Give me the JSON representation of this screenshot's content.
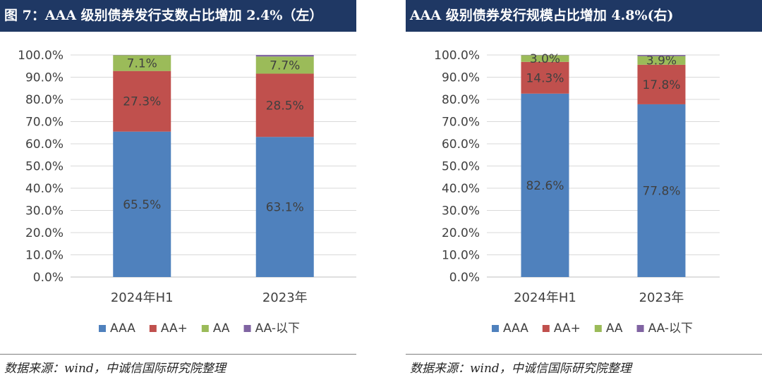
{
  "panels": [
    {
      "title": "图 7：AAA 级别债券发行支数占比增加 2.4%（左）",
      "source": "数据来源：wind，中诚信国际研究院整理"
    },
    {
      "title": "AAA 级别债券发行规模占比增加 4.8%(右)",
      "source": "数据来源：wind，中诚信国际研究院整理"
    }
  ],
  "chart_data": [
    {
      "type": "bar",
      "stacked": true,
      "categories": [
        "2024年H1",
        "2023年"
      ],
      "series": [
        {
          "name": "AAA",
          "color": "#4f81bd",
          "values": [
            65.5,
            63.1
          ],
          "labels": [
            "65.5%",
            "63.1%"
          ]
        },
        {
          "name": "AA+",
          "color": "#c0504d",
          "values": [
            27.3,
            28.5
          ],
          "labels": [
            "27.3%",
            "28.5%"
          ]
        },
        {
          "name": "AA",
          "color": "#9bbb59",
          "values": [
            7.1,
            7.7
          ],
          "labels": [
            "7.1%",
            "7.7%"
          ]
        },
        {
          "name": "AA-以下",
          "color": "#8064a2",
          "values": [
            0.1,
            0.7
          ],
          "labels": [
            "",
            ""
          ]
        }
      ],
      "ylim": [
        0,
        100
      ],
      "yticks": [
        "0.0%",
        "10.0%",
        "20.0%",
        "30.0%",
        "40.0%",
        "50.0%",
        "60.0%",
        "70.0%",
        "80.0%",
        "90.0%",
        "100.0%"
      ],
      "grid": true,
      "legend": "bottom"
    },
    {
      "type": "bar",
      "stacked": true,
      "categories": [
        "2024年H1",
        "2023年"
      ],
      "series": [
        {
          "name": "AAA",
          "color": "#4f81bd",
          "values": [
            82.6,
            77.8
          ],
          "labels": [
            "82.6%",
            "77.8%"
          ]
        },
        {
          "name": "AA+",
          "color": "#c0504d",
          "values": [
            14.3,
            17.8
          ],
          "labels": [
            "14.3%",
            "17.8%"
          ]
        },
        {
          "name": "AA",
          "color": "#9bbb59",
          "values": [
            3.0,
            3.9
          ],
          "labels": [
            "3.0%",
            "3.9%"
          ]
        },
        {
          "name": "AA-以下",
          "color": "#8064a2",
          "values": [
            0.1,
            0.5
          ],
          "labels": [
            "",
            ""
          ]
        }
      ],
      "ylim": [
        0,
        100
      ],
      "yticks": [
        "0.0%",
        "10.0%",
        "20.0%",
        "30.0%",
        "40.0%",
        "50.0%",
        "60.0%",
        "70.0%",
        "80.0%",
        "90.0%",
        "100.0%"
      ],
      "grid": true,
      "legend": "bottom"
    }
  ]
}
